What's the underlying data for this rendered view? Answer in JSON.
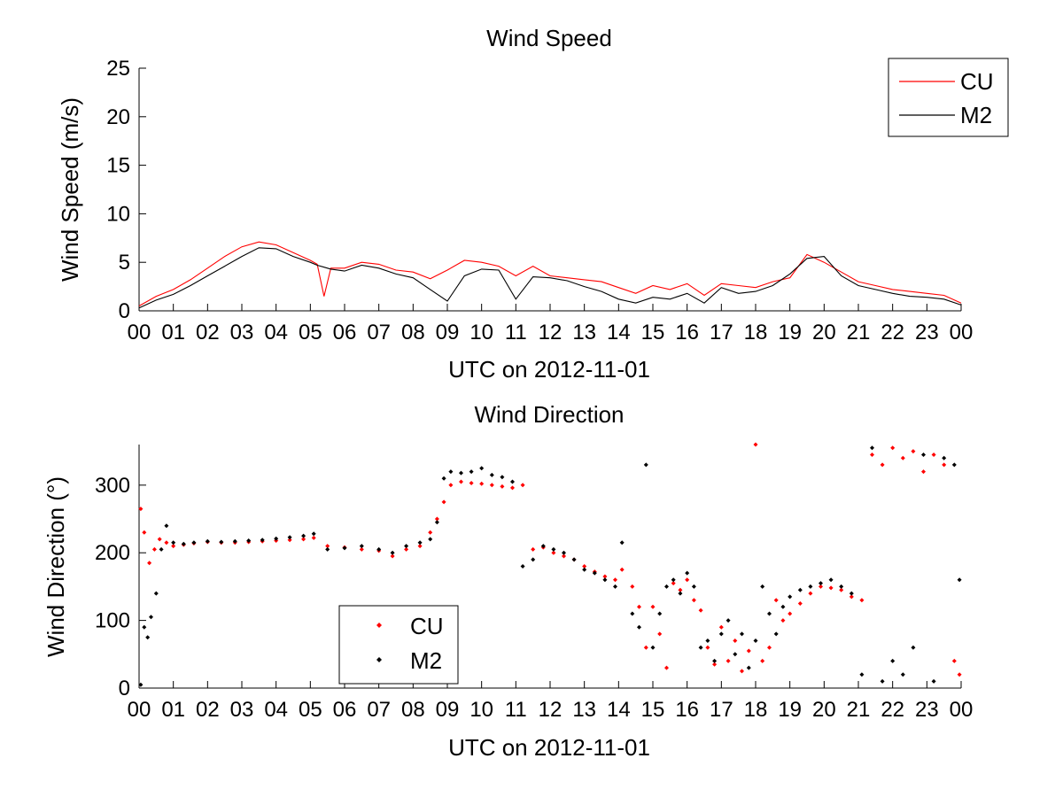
{
  "colors": {
    "CU": "#ff0000",
    "M2": "#000000"
  },
  "chart_data": [
    {
      "type": "line",
      "title": "Wind Speed",
      "xlabel": "UTC on 2012-11-01",
      "ylabel": "Wind Speed (m/s)",
      "xlim": [
        0,
        24
      ],
      "ylim": [
        0,
        25
      ],
      "yticks": [
        0,
        5,
        10,
        15,
        20,
        25
      ],
      "xticklabels": [
        "00",
        "01",
        "02",
        "03",
        "04",
        "05",
        "06",
        "07",
        "08",
        "09",
        "10",
        "11",
        "12",
        "13",
        "14",
        "15",
        "16",
        "17",
        "18",
        "19",
        "20",
        "21",
        "22",
        "23",
        "00"
      ],
      "legend_position": "top-right",
      "x_unit": "hours UTC",
      "series": [
        {
          "name": "CU",
          "x": [
            0,
            0.5,
            1,
            1.5,
            2,
            2.5,
            3,
            3.5,
            4,
            4.5,
            5,
            5.2,
            5.4,
            5.6,
            6,
            6.5,
            7,
            7.5,
            8,
            8.5,
            9,
            9.5,
            10,
            10.5,
            11,
            11.5,
            12,
            12.5,
            13,
            13.5,
            14,
            14.5,
            15,
            15.5,
            16,
            16.5,
            17,
            17.5,
            18,
            18.5,
            19,
            19.5,
            20,
            20.5,
            21,
            21.5,
            22,
            22.5,
            23,
            23.5,
            24
          ],
          "values": [
            0.5,
            1.5,
            2.2,
            3.2,
            4.4,
            5.6,
            6.6,
            7.1,
            6.8,
            6.0,
            5.2,
            4.8,
            1.5,
            4.4,
            4.4,
            5.0,
            4.8,
            4.2,
            4.0,
            3.3,
            4.2,
            5.2,
            5.0,
            4.6,
            3.6,
            4.6,
            3.6,
            3.4,
            3.2,
            3.0,
            2.4,
            1.8,
            2.6,
            2.2,
            2.8,
            1.6,
            2.8,
            2.6,
            2.4,
            3.0,
            3.4,
            5.8,
            5.0,
            4.0,
            3.0,
            2.6,
            2.2,
            2.0,
            1.8,
            1.6,
            0.8
          ]
        },
        {
          "name": "M2",
          "x": [
            0,
            0.5,
            1,
            1.5,
            2,
            2.5,
            3,
            3.5,
            4,
            4.5,
            5,
            5.2,
            5.4,
            5.6,
            6,
            6.5,
            7,
            7.5,
            8,
            8.5,
            9,
            9.5,
            10,
            10.5,
            11,
            11.5,
            12,
            12.5,
            13,
            13.5,
            14,
            14.5,
            15,
            15.5,
            16,
            16.5,
            17,
            17.5,
            18,
            18.5,
            19,
            19.5,
            20,
            20.5,
            21,
            21.5,
            22,
            22.5,
            23,
            23.5,
            24
          ],
          "values": [
            0.3,
            1.1,
            1.7,
            2.6,
            3.6,
            4.6,
            5.6,
            6.5,
            6.4,
            5.6,
            5.0,
            4.7,
            4.5,
            4.3,
            4.1,
            4.7,
            4.4,
            3.8,
            3.4,
            2.2,
            1.0,
            3.6,
            4.3,
            4.2,
            1.2,
            3.5,
            3.4,
            3.1,
            2.5,
            2.0,
            1.2,
            0.8,
            1.4,
            1.2,
            1.8,
            0.8,
            2.4,
            1.8,
            2.0,
            2.6,
            3.8,
            5.4,
            5.6,
            3.6,
            2.6,
            2.2,
            1.8,
            1.5,
            1.4,
            1.2,
            0.6
          ]
        }
      ]
    },
    {
      "type": "scatter",
      "title": "Wind Direction",
      "xlabel": "UTC on 2012-11-01",
      "ylabel": "Wind Direction (°)",
      "xlim": [
        0,
        24
      ],
      "ylim": [
        0,
        360
      ],
      "yticks": [
        0,
        100,
        200,
        300
      ],
      "xticklabels": [
        "00",
        "01",
        "02",
        "03",
        "04",
        "05",
        "06",
        "07",
        "08",
        "09",
        "10",
        "11",
        "12",
        "13",
        "14",
        "15",
        "16",
        "17",
        "18",
        "19",
        "20",
        "21",
        "22",
        "23",
        "00"
      ],
      "legend_position": "bottom-left",
      "x_unit": "hours UTC",
      "series": [
        {
          "name": "CU",
          "x": [
            0.05,
            0.15,
            0.3,
            0.45,
            0.6,
            0.8,
            1.0,
            1.3,
            1.6,
            2.0,
            2.4,
            2.8,
            3.2,
            3.6,
            4.0,
            4.4,
            4.8,
            5.1,
            5.5,
            6.0,
            6.5,
            7.0,
            7.4,
            7.8,
            8.2,
            8.5,
            8.7,
            8.9,
            9.1,
            9.4,
            9.7,
            10.0,
            10.3,
            10.6,
            10.9,
            11.2,
            11.5,
            11.8,
            12.1,
            12.4,
            12.7,
            13.0,
            13.3,
            13.6,
            13.9,
            14.1,
            14.4,
            14.6,
            14.8,
            15.0,
            15.2,
            15.4,
            15.6,
            15.8,
            16.0,
            16.2,
            16.4,
            16.6,
            16.8,
            17.0,
            17.2,
            17.4,
            17.6,
            17.8,
            18.0,
            18.2,
            18.4,
            18.6,
            18.8,
            19.0,
            19.3,
            19.6,
            19.9,
            20.2,
            20.5,
            20.8,
            21.1,
            21.4,
            21.7,
            22.0,
            22.3,
            22.6,
            22.9,
            23.2,
            23.5,
            23.8,
            23.95
          ],
          "values": [
            265,
            230,
            185,
            205,
            220,
            215,
            210,
            212,
            214,
            216,
            215,
            215,
            216,
            217,
            218,
            219,
            220,
            222,
            210,
            208,
            205,
            203,
            195,
            205,
            210,
            230,
            250,
            275,
            300,
            305,
            303,
            302,
            300,
            298,
            296,
            300,
            205,
            208,
            200,
            195,
            190,
            180,
            172,
            165,
            160,
            175,
            150,
            120,
            60,
            120,
            80,
            30,
            155,
            145,
            160,
            130,
            115,
            60,
            35,
            90,
            40,
            70,
            25,
            55,
            360,
            40,
            60,
            130,
            100,
            110,
            125,
            140,
            150,
            148,
            145,
            135,
            130,
            345,
            330,
            355,
            340,
            350,
            320,
            345,
            330,
            40,
            20
          ]
        },
        {
          "name": "M2",
          "x": [
            0.05,
            0.15,
            0.25,
            0.35,
            0.5,
            0.65,
            0.8,
            1.0,
            1.3,
            1.6,
            2.0,
            2.4,
            2.8,
            3.2,
            3.6,
            4.0,
            4.4,
            4.8,
            5.1,
            5.5,
            6.0,
            6.5,
            7.0,
            7.4,
            7.8,
            8.2,
            8.5,
            8.7,
            8.9,
            9.1,
            9.4,
            9.7,
            10.0,
            10.3,
            10.6,
            10.9,
            11.2,
            11.5,
            11.8,
            12.1,
            12.4,
            12.7,
            13.0,
            13.3,
            13.6,
            13.9,
            14.1,
            14.4,
            14.6,
            14.8,
            15.0,
            15.2,
            15.4,
            15.6,
            15.8,
            16.0,
            16.2,
            16.4,
            16.6,
            16.8,
            17.0,
            17.2,
            17.4,
            17.6,
            17.8,
            18.0,
            18.2,
            18.4,
            18.6,
            18.8,
            19.0,
            19.3,
            19.6,
            19.9,
            20.2,
            20.5,
            20.8,
            21.1,
            21.4,
            21.7,
            22.0,
            22.3,
            22.6,
            22.9,
            23.2,
            23.5,
            23.8,
            23.95
          ],
          "values": [
            5,
            90,
            75,
            105,
            140,
            205,
            240,
            215,
            213,
            215,
            217,
            216,
            217,
            218,
            219,
            221,
            223,
            225,
            228,
            205,
            207,
            210,
            205,
            200,
            210,
            215,
            220,
            245,
            310,
            320,
            318,
            320,
            325,
            315,
            312,
            305,
            180,
            190,
            210,
            205,
            200,
            190,
            175,
            170,
            160,
            150,
            215,
            110,
            90,
            330,
            60,
            110,
            150,
            160,
            140,
            170,
            150,
            60,
            70,
            40,
            80,
            100,
            50,
            80,
            30,
            70,
            150,
            110,
            80,
            120,
            135,
            145,
            150,
            155,
            160,
            150,
            140,
            20,
            355,
            10,
            40,
            20,
            60,
            345,
            10,
            340,
            330,
            160
          ]
        }
      ]
    }
  ]
}
